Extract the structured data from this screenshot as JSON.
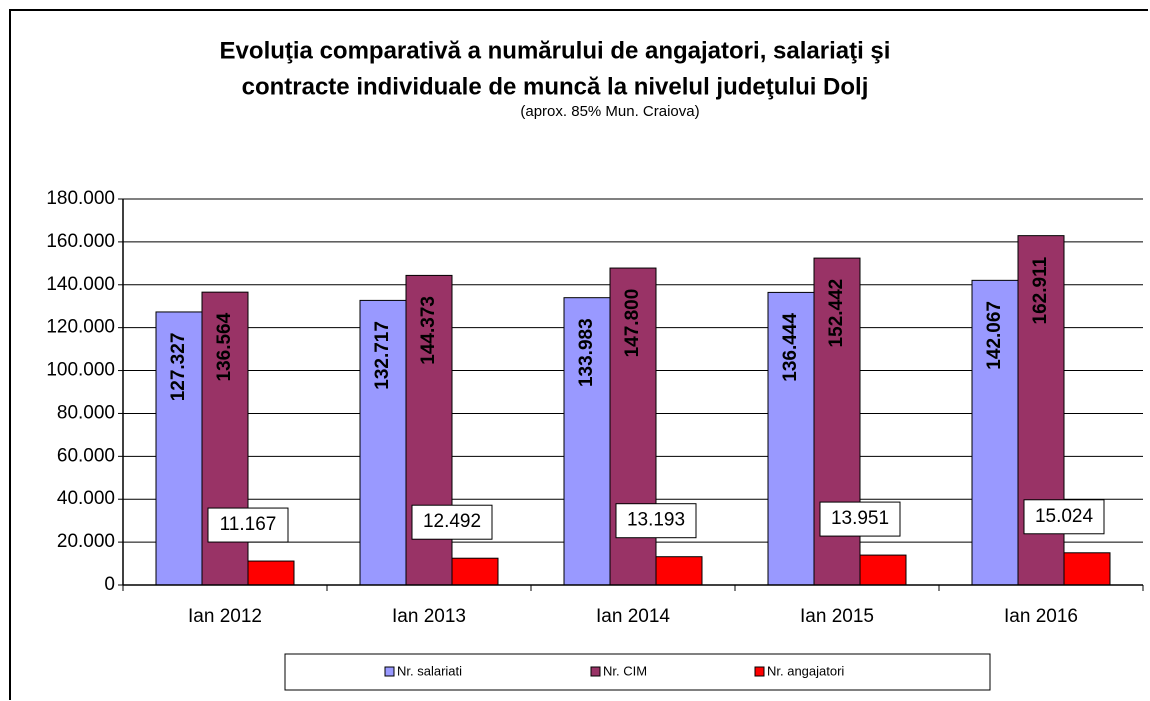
{
  "chart_data": {
    "type": "bar",
    "title": [
      "Evoluţia comparativă a numărului de angajatori, salariaţi şi",
      "contracte individuale de muncă la nivelul judeţului Dolj"
    ],
    "subtitle": "(aprox. 85% Mun. Craiova)",
    "categories": [
      "Ian 2012",
      "Ian 2013",
      "Ian 2014",
      "Ian 2015",
      "Ian 2016"
    ],
    "series": [
      {
        "name": "Nr. salariati",
        "color": "#9999ff",
        "values": [
          127327,
          132717,
          133983,
          136444,
          142067
        ],
        "value_labels": [
          "127.327",
          "132.717",
          "133.983",
          "136.444",
          "142.067"
        ]
      },
      {
        "name": "Nr. CIM",
        "color": "#993366",
        "values": [
          136564,
          144373,
          147800,
          152442,
          162911
        ],
        "value_labels": [
          "136.564",
          "144.373",
          "147.800",
          "152.442",
          "162.911"
        ]
      },
      {
        "name": "Nr. angajatori",
        "color": "#ff0000",
        "values": [
          11167,
          12492,
          13193,
          13951,
          15024
        ],
        "value_labels": [
          "11.167",
          "12.492",
          "13.193",
          "13.951",
          "15.024"
        ]
      }
    ],
    "ylim": [
      0,
      180000
    ],
    "yticks": [
      0,
      {
        "value": 20000,
        "label": "20.000"
      },
      {
        "value": 40000,
        "label": "40.000"
      },
      {
        "value": 60000,
        "label": "60.000"
      },
      {
        "value": 80000,
        "label": "80.000"
      },
      {
        "value": 100000,
        "label": "100.000"
      },
      {
        "value": 120000,
        "label": "120.000"
      },
      {
        "value": 140000,
        "label": "140.000"
      },
      {
        "value": 160000,
        "label": "160.000"
      },
      {
        "value": 180000,
        "label": "180.000"
      }
    ],
    "grid": true
  }
}
